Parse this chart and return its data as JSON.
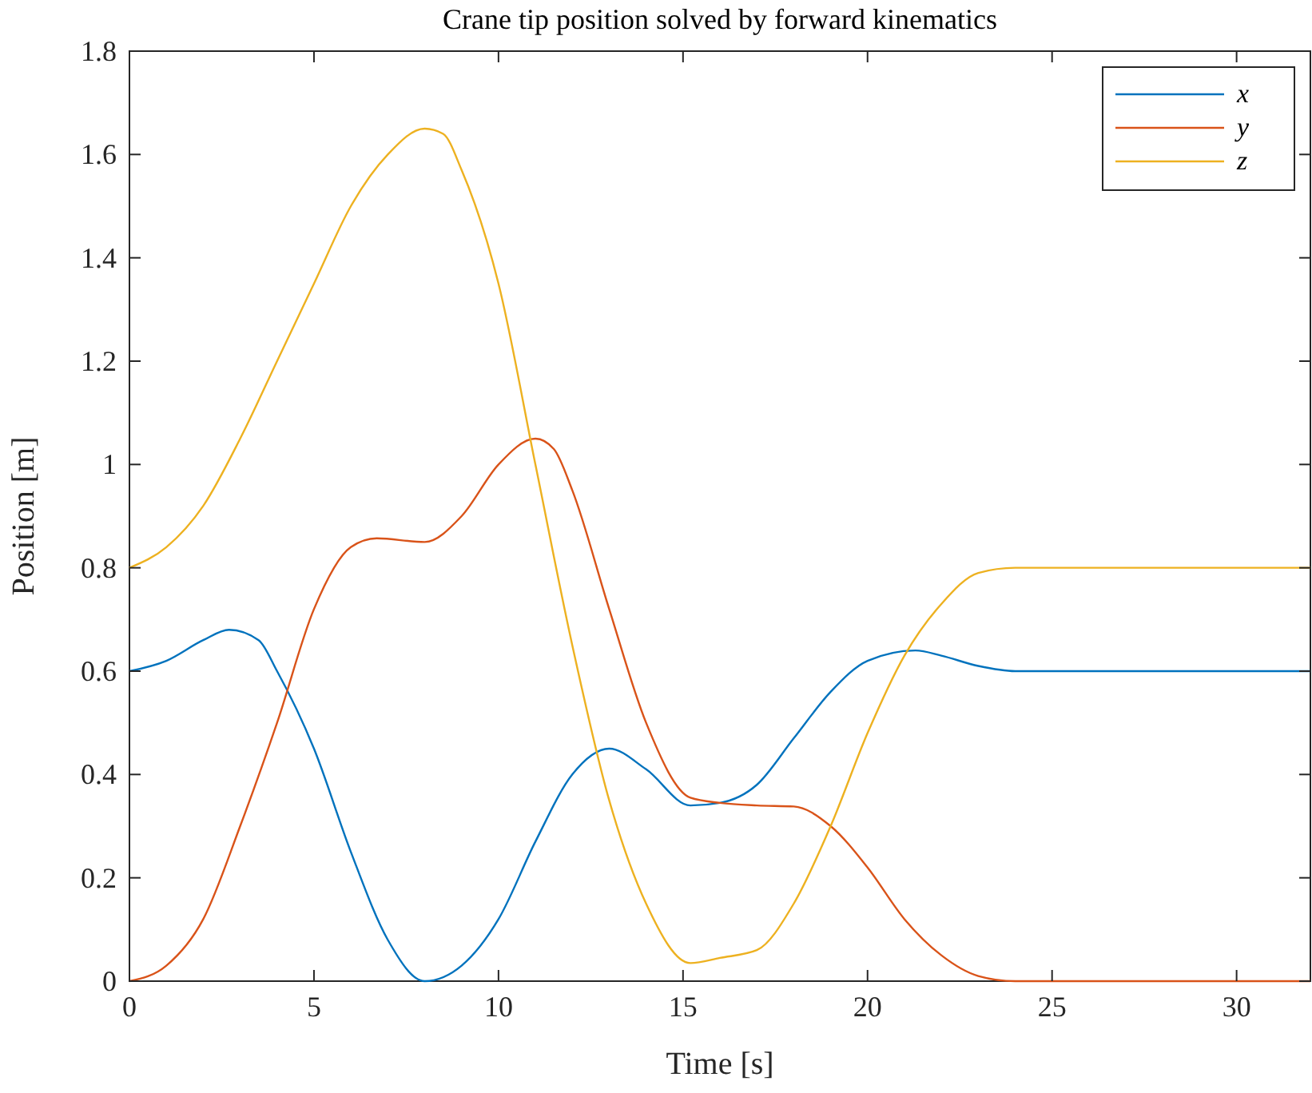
{
  "chart_data": {
    "type": "line",
    "title": "Crane tip position solved by forward kinematics",
    "xlabel": "Time [s]",
    "ylabel": "Position [m]",
    "xlim": [
      0,
      32
    ],
    "xticks": [
      0,
      5,
      10,
      15,
      20,
      25,
      30
    ],
    "ylim": [
      0,
      1.8
    ],
    "yticks": [
      0,
      0.2,
      0.4,
      0.6,
      0.8,
      1,
      1.2,
      1.4,
      1.6,
      1.8
    ],
    "grid": false,
    "legend": "top right",
    "series": [
      {
        "name": "x",
        "color": "#0072bd",
        "x": [
          0,
          1,
          2,
          2.7,
          3.5,
          4,
          5,
          6,
          7,
          8,
          9,
          10,
          11,
          12,
          13,
          14,
          15.2,
          16,
          17,
          18,
          19,
          20,
          21.3,
          22,
          23,
          24,
          32
        ],
        "values": [
          0.6,
          0.62,
          0.66,
          0.68,
          0.66,
          0.6,
          0.45,
          0.25,
          0.08,
          0,
          0.03,
          0.12,
          0.27,
          0.4,
          0.45,
          0.41,
          0.34,
          0.345,
          0.38,
          0.47,
          0.56,
          0.62,
          0.64,
          0.63,
          0.61,
          0.6,
          0.6
        ]
      },
      {
        "name": "y",
        "color": "#d95319",
        "x": [
          0,
          1,
          2,
          3,
          4,
          5,
          6,
          6.7,
          8,
          9,
          10,
          11,
          11.5,
          12,
          13,
          14,
          15.2,
          16,
          17,
          18,
          19,
          20,
          21,
          22,
          23,
          24,
          32
        ],
        "values": [
          0,
          0.03,
          0.12,
          0.3,
          0.5,
          0.72,
          0.84,
          0.857,
          0.85,
          0.9,
          1,
          1.05,
          1.03,
          0.95,
          0.72,
          0.5,
          0.355,
          0.345,
          0.34,
          0.338,
          0.3,
          0.22,
          0.12,
          0.05,
          0.01,
          0,
          0
        ]
      },
      {
        "name": "z",
        "color": "#edb120",
        "x": [
          0,
          1,
          2,
          3,
          4,
          5,
          6,
          7,
          8,
          8.5,
          9,
          10,
          11,
          12,
          13,
          14,
          15.2,
          16,
          17,
          18,
          19,
          20,
          21,
          22,
          23,
          24,
          32
        ],
        "values": [
          0.8,
          0.84,
          0.92,
          1.05,
          1.2,
          1.35,
          1.5,
          1.6,
          1.65,
          1.64,
          1.57,
          1.35,
          1,
          0.65,
          0.35,
          0.15,
          0.035,
          0.045,
          0.06,
          0.15,
          0.3,
          0.48,
          0.63,
          0.73,
          0.79,
          0.8,
          0.8
        ]
      }
    ]
  }
}
